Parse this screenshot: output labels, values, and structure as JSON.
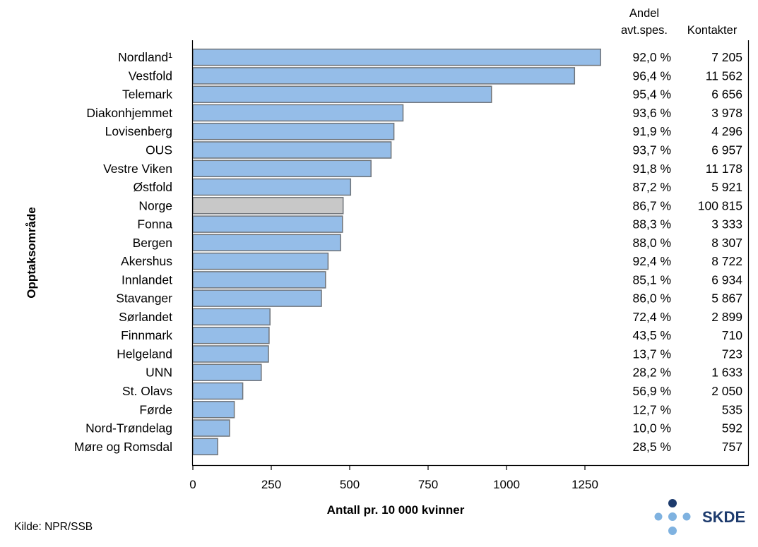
{
  "chart_data": {
    "type": "bar",
    "orientation": "horizontal",
    "categories": [
      "Nordland¹",
      "Vestfold",
      "Telemark",
      "Diakonhjemmet",
      "Lovisenberg",
      "OUS",
      "Vestre Viken",
      "Østfold",
      "Norge",
      "Fonna",
      "Bergen",
      "Akershus",
      "Innlandet",
      "Stavanger",
      "Sørlandet",
      "Finnmark",
      "Helgeland",
      "UNN",
      "St. Olavs",
      "Førde",
      "Nord-Trøndelag",
      "Møre og Romsdal"
    ],
    "values": [
      1300,
      1217,
      952,
      670,
      641,
      632,
      568,
      503,
      479,
      477,
      471,
      431,
      423,
      410,
      246,
      243,
      241,
      218,
      159,
      132,
      117,
      79
    ],
    "highlight_category": "Norge",
    "xlabel": "Antall pr. 10 000 kvinner",
    "ylabel": "Opptaksområde",
    "xlim": [
      0,
      1450
    ],
    "xticks": [
      0,
      250,
      500,
      750,
      1000,
      1250
    ],
    "grid": false,
    "colors": {
      "bar": "#95bde8",
      "highlight": "#c8c8c8",
      "bar_edge": "#6f7479"
    },
    "table": {
      "headers": [
        [
          "Andel",
          "avt.spes."
        ],
        [
          "Kontakter"
        ]
      ],
      "andel": [
        "92,0 %",
        "96,4 %",
        "95,4 %",
        "93,6 %",
        "91,9 %",
        "93,7 %",
        "91,8 %",
        "87,2 %",
        "86,7 %",
        "88,3 %",
        "88,0 %",
        "92,4 %",
        "85,1 %",
        "86,0 %",
        "72,4 %",
        "43,5 %",
        "13,7 %",
        "28,2 %",
        "56,9 %",
        "12,7 %",
        "10,0 %",
        "28,5 %"
      ],
      "kontakter": [
        "7 205",
        "11 562",
        "6 656",
        "3 978",
        "4 296",
        "6 957",
        "11 178",
        "5 921",
        "100 815",
        "3 333",
        "8 307",
        "8 722",
        "6 934",
        "5 867",
        "2 899",
        "710",
        "723",
        "1 633",
        "2 050",
        "535",
        "592",
        "757"
      ]
    }
  },
  "footer": {
    "source": "Kilde: NPR/SSB",
    "logo_text": "SKDE",
    "logo_colors": {
      "dark": "#1d3b6d",
      "light": "#7fb2e0"
    }
  }
}
